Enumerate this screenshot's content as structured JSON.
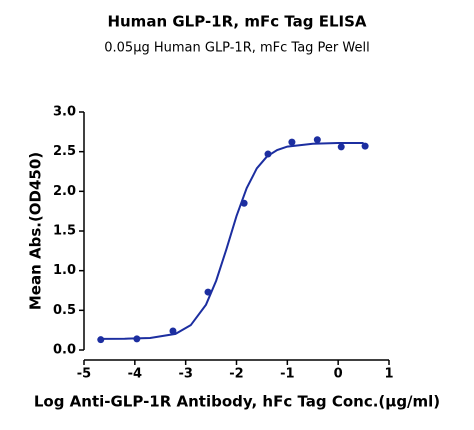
{
  "chart_data": {
    "type": "scatter",
    "title": "Human GLP-1R, mFc Tag ELISA",
    "subtitle": "0.05µg Human GLP-1R, mFc Tag Per Well",
    "x_label": "Log Anti-GLP-1R Antibody, hFc Tag Conc.(µg/ml)",
    "y_label": "Mean Abs.(OD450)",
    "color": "#1c2ea0",
    "xlim": [
      -5,
      1
    ],
    "xticks": [
      -5,
      -4,
      -3,
      -2,
      -1,
      0,
      1
    ],
    "ylim": [
      0,
      3
    ],
    "yticks": [
      {
        "value": 0,
        "label": "0.0"
      },
      {
        "value": 0.5,
        "label": "0.5"
      },
      {
        "value": 1,
        "label": "1.0"
      },
      {
        "value": 1.5,
        "label": "1.5"
      },
      {
        "value": 2,
        "label": "2.0"
      },
      {
        "value": 2.5,
        "label": "2.5"
      },
      {
        "value": 3,
        "label": "3.0"
      }
    ],
    "points": {
      "x": [
        -4.67,
        -3.96,
        -3.25,
        -2.56,
        -1.85,
        -1.38,
        -0.91,
        -0.41,
        0.06,
        0.53
      ],
      "values": [
        0.13,
        0.14,
        0.24,
        0.73,
        1.85,
        2.47,
        2.62,
        2.65,
        2.56,
        2.57
      ]
    },
    "fit": {
      "x": [
        -4.7,
        -4.2,
        -3.7,
        -3.2,
        -2.9,
        -2.6,
        -2.4,
        -2.2,
        -2.0,
        -1.8,
        -1.6,
        -1.4,
        -1.2,
        -1.0,
        -0.5,
        0.0,
        0.5
      ],
      "values": [
        0.14,
        0.142,
        0.152,
        0.203,
        0.313,
        0.571,
        0.873,
        1.268,
        1.688,
        2.04,
        2.29,
        2.44,
        2.52,
        2.564,
        2.6,
        2.61,
        2.61
      ]
    }
  }
}
